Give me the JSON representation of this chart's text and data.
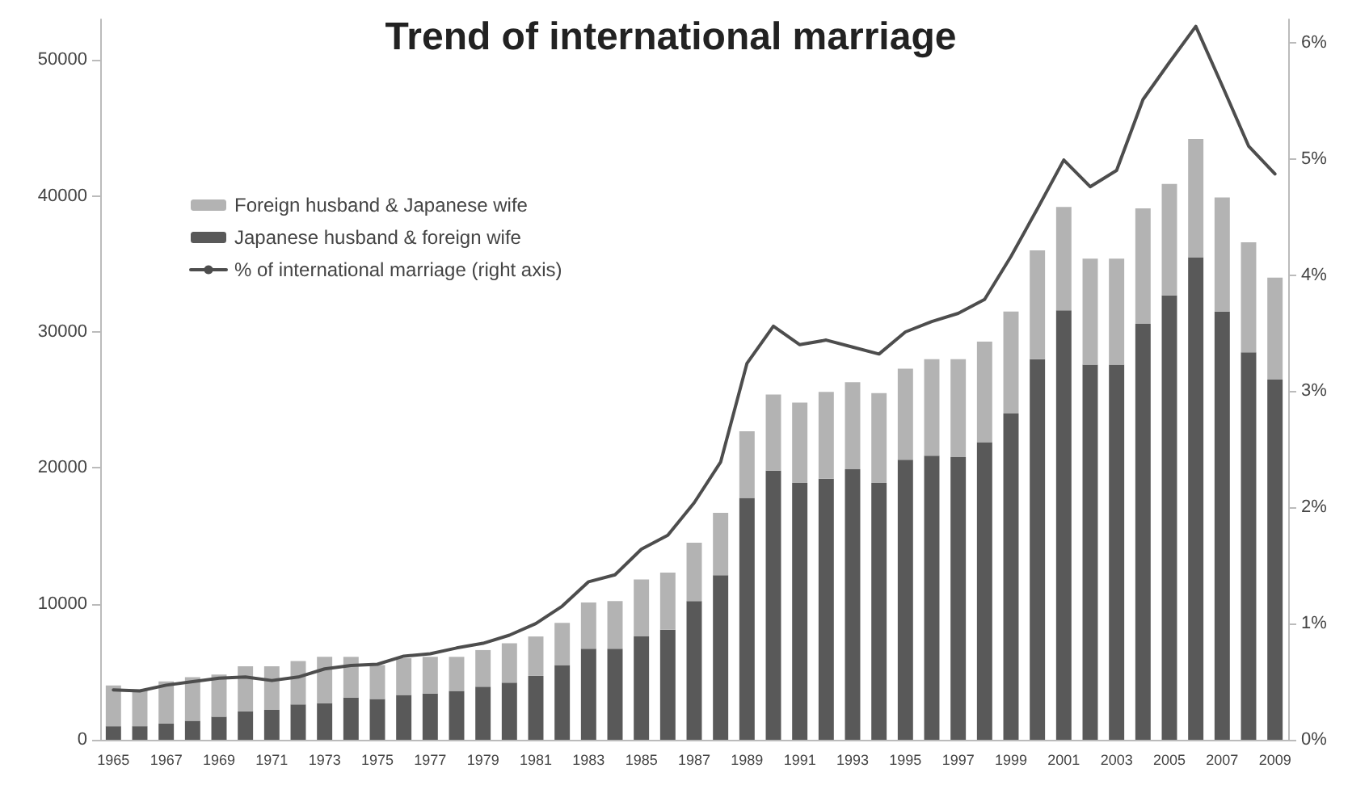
{
  "chart_data": {
    "type": "bar",
    "title": "Trend of international marriage",
    "categories": [
      "1965",
      null,
      "1967",
      null,
      "1969",
      null,
      "1971",
      null,
      "1973",
      null,
      "1975",
      null,
      "1977",
      null,
      "1979",
      null,
      "1981",
      null,
      "1983",
      null,
      "1985",
      null,
      "1987",
      null,
      "1989",
      null,
      "1991",
      null,
      "1993",
      null,
      "1995",
      null,
      "1997",
      null,
      "1999",
      null,
      "2001",
      null,
      "2003",
      null,
      "2005",
      null,
      "2007",
      null,
      "2009"
    ],
    "stacked": true,
    "series": [
      {
        "name": "Japanese husband & foreign wife",
        "color": "#595959",
        "values": [
          1000,
          1000,
          1200,
          1400,
          1700,
          2100,
          2200,
          2600,
          2700,
          3100,
          3000,
          3300,
          3400,
          3600,
          3900,
          4200,
          4700,
          5500,
          6700,
          6700,
          7600,
          8100,
          10200,
          12100,
          17800,
          19800,
          18900,
          19200,
          19900,
          18900,
          20600,
          20900,
          20800,
          21900,
          24000,
          28000,
          31600,
          27600,
          27600,
          30600,
          32700,
          35500,
          31500,
          28500,
          26500
        ]
      },
      {
        "name": "Foreign husband & Japanese wife",
        "color": "#b3b3b3",
        "values": [
          3000,
          2700,
          3100,
          3200,
          3100,
          3300,
          3200,
          3200,
          3400,
          3000,
          2500,
          2700,
          2700,
          2500,
          2700,
          2900,
          2900,
          3100,
          3400,
          3500,
          4200,
          4200,
          4300,
          4600,
          4900,
          5600,
          5900,
          6400,
          6400,
          6600,
          6700,
          7100,
          7200,
          7400,
          7500,
          8000,
          7600,
          7800,
          7800,
          8500,
          8200,
          8700,
          8400,
          8100,
          7500
        ]
      },
      {
        "name": "% of international marriage (right axis)",
        "type": "line",
        "axis": "y2",
        "color": "#4d4d4d",
        "values": [
          0.43,
          0.42,
          0.47,
          0.5,
          0.53,
          0.54,
          0.51,
          0.54,
          0.61,
          0.64,
          0.65,
          0.72,
          0.74,
          0.79,
          0.83,
          0.9,
          1.0,
          1.15,
          1.36,
          1.42,
          1.64,
          1.76,
          2.04,
          2.39,
          3.24,
          3.56,
          3.4,
          3.44,
          3.38,
          3.32,
          3.51,
          3.6,
          3.67,
          3.79,
          4.16,
          4.57,
          4.99,
          4.76,
          4.9,
          5.51,
          5.83,
          6.14,
          5.63,
          5.11,
          4.87
        ]
      }
    ],
    "ylim": [
      0,
      53000
    ],
    "yticks": [
      0,
      10000,
      20000,
      30000,
      40000,
      50000
    ],
    "y2lim": [
      0,
      6.2
    ],
    "y2ticks": [
      {
        "value": 0,
        "label": "0%"
      },
      {
        "value": 1,
        "label": "1%"
      },
      {
        "value": 2,
        "label": "2%"
      },
      {
        "value": 3,
        "label": "3%"
      },
      {
        "value": 4,
        "label": "4%"
      },
      {
        "value": 5,
        "label": "5%"
      },
      {
        "value": 6,
        "label": "6%"
      }
    ],
    "grid": false,
    "legend": "top left",
    "marker": "none",
    "line_style": "solid"
  }
}
